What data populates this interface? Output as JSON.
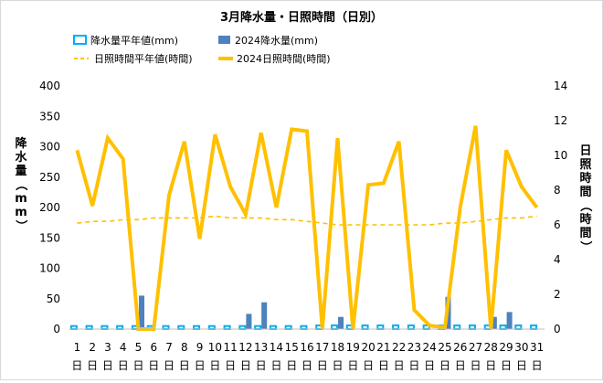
{
  "chart_data": {
    "type": "bar",
    "title": "3月降水量・日照時間（日別）",
    "categories": [
      "1",
      "2",
      "3",
      "4",
      "5",
      "6",
      "7",
      "8",
      "9",
      "10",
      "11",
      "12",
      "13",
      "14",
      "15",
      "16",
      "17",
      "18",
      "19",
      "20",
      "21",
      "22",
      "23",
      "24",
      "25",
      "26",
      "27",
      "28",
      "29",
      "30",
      "31"
    ],
    "category_suffix": "日",
    "y_left": {
      "label": "降水量（mm）",
      "min": 0,
      "max": 400,
      "ticks": [
        0,
        50,
        100,
        150,
        200,
        250,
        300,
        350,
        400
      ]
    },
    "y_right": {
      "label": "日照時間（時間）",
      "min": 0,
      "max": 14,
      "ticks": [
        0,
        2,
        4,
        6,
        8,
        10,
        12,
        14
      ]
    },
    "grid": false,
    "legend_position": "top",
    "series": [
      {
        "name": "降水量平年値(mm)",
        "kind": "bar",
        "axis": "left",
        "color": "#00b0f0",
        "values": [
          5,
          5,
          5,
          5,
          5,
          5,
          5,
          5,
          5,
          5,
          5,
          5,
          5,
          5,
          5,
          5,
          6,
          6,
          6,
          6,
          6,
          6,
          6,
          6,
          6,
          6,
          6,
          6,
          6,
          6,
          6
        ]
      },
      {
        "name": "2024降水量(mm)",
        "kind": "bar",
        "axis": "left",
        "color": "#4f81bd",
        "values": [
          0,
          0,
          0,
          0,
          55,
          0,
          0,
          0,
          0,
          0,
          0,
          25,
          44,
          0,
          0,
          0,
          0,
          20,
          0,
          0,
          0,
          0,
          0,
          0,
          53,
          0,
          0,
          20,
          28,
          0,
          0
        ]
      },
      {
        "name": "日照時間平年値(時間)",
        "kind": "line",
        "axis": "right",
        "color": "#ffc000",
        "values": [
          6.1,
          6.2,
          6.2,
          6.3,
          6.3,
          6.4,
          6.4,
          6.4,
          6.4,
          6.5,
          6.4,
          6.4,
          6.4,
          6.3,
          6.3,
          6.2,
          6.1,
          6.0,
          6.0,
          6.0,
          6.0,
          6.0,
          6.0,
          6.0,
          6.1,
          6.1,
          6.2,
          6.3,
          6.4,
          6.4,
          6.5
        ]
      },
      {
        "name": "2024日照時間(時間)",
        "kind": "line",
        "axis": "right",
        "color": "#ffc000",
        "values": [
          10.3,
          7.1,
          11.0,
          9.8,
          0,
          0,
          7.7,
          10.8,
          5.2,
          11.2,
          8.2,
          6.6,
          11.3,
          7.0,
          11.5,
          11.4,
          0,
          11.0,
          0,
          8.3,
          8.4,
          10.8,
          1.1,
          0.2,
          0.1,
          7.0,
          11.7,
          0,
          10.3,
          8.2,
          7.0
        ]
      }
    ]
  }
}
